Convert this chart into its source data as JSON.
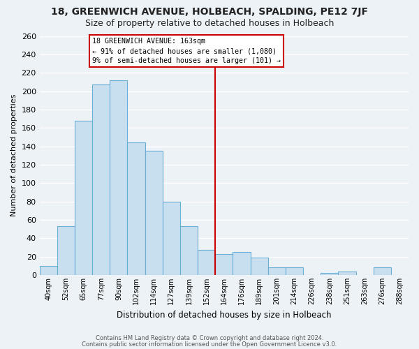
{
  "title": "18, GREENWICH AVENUE, HOLBEACH, SPALDING, PE12 7JF",
  "subtitle": "Size of property relative to detached houses in Holbeach",
  "xlabel": "Distribution of detached houses by size in Holbeach",
  "ylabel": "Number of detached properties",
  "bar_labels": [
    "40sqm",
    "52sqm",
    "65sqm",
    "77sqm",
    "90sqm",
    "102sqm",
    "114sqm",
    "127sqm",
    "139sqm",
    "152sqm",
    "164sqm",
    "176sqm",
    "189sqm",
    "201sqm",
    "214sqm",
    "226sqm",
    "238sqm",
    "251sqm",
    "263sqm",
    "276sqm",
    "288sqm"
  ],
  "bar_values": [
    10,
    53,
    168,
    207,
    212,
    144,
    135,
    80,
    53,
    27,
    23,
    25,
    19,
    8,
    8,
    0,
    2,
    4,
    0,
    8,
    0
  ],
  "bar_color": "#c8dff0",
  "bar_edge_color": "#6aaed6",
  "vline_idx": 10,
  "vline_color": "#cc0000",
  "annotation_title": "18 GREENWICH AVENUE: 163sqm",
  "annotation_line1": "← 91% of detached houses are smaller (1,080)",
  "annotation_line2": "9% of semi-detached houses are larger (101) →",
  "annotation_box_color": "#ffffff",
  "annotation_box_edge": "#cc0000",
  "ylim": [
    0,
    260
  ],
  "yticks": [
    0,
    20,
    40,
    60,
    80,
    100,
    120,
    140,
    160,
    180,
    200,
    220,
    240,
    260
  ],
  "footer1": "Contains HM Land Registry data © Crown copyright and database right 2024.",
  "footer2": "Contains public sector information licensed under the Open Government Licence v3.0.",
  "bg_color": "#edf2f7",
  "grid_color": "#ffffff",
  "title_fontsize": 10,
  "subtitle_fontsize": 9
}
